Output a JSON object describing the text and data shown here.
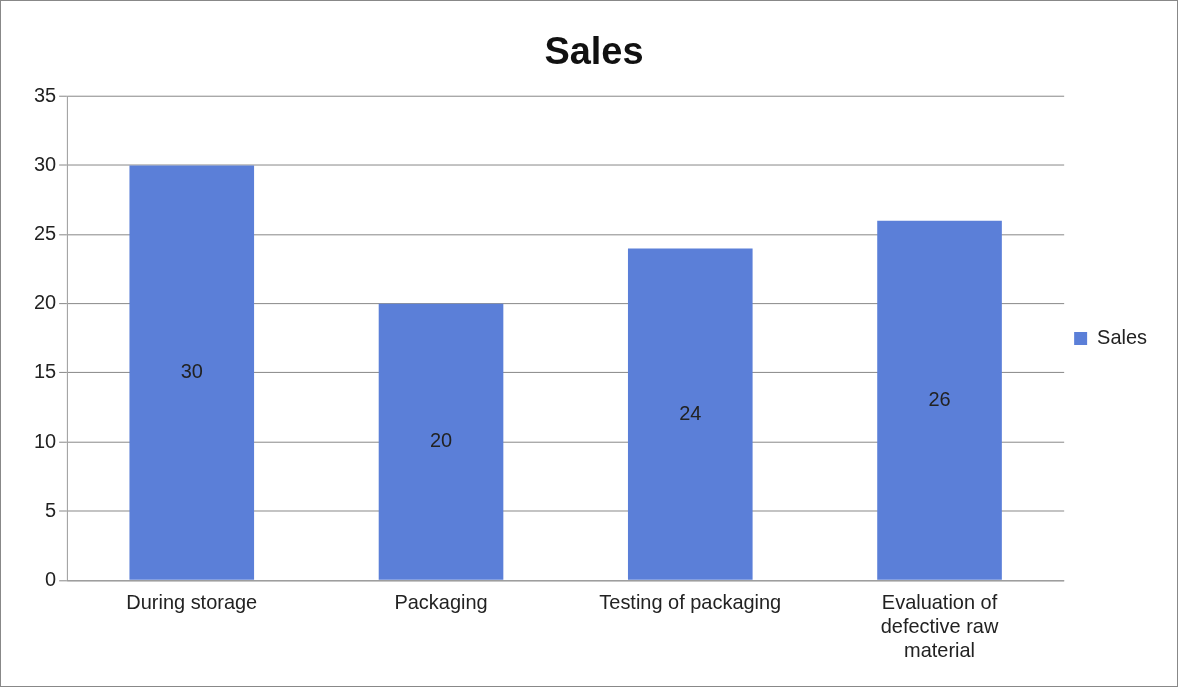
{
  "chart_data": {
    "type": "bar",
    "title": "Sales",
    "categories": [
      "During storage",
      "Packaging",
      "Testing of packaging",
      "Evaluation of defective raw material"
    ],
    "series": [
      {
        "name": "Sales",
        "color": "#5b7fd8",
        "values": [
          30,
          20,
          24,
          26
        ]
      }
    ],
    "ylim": [
      0,
      35
    ],
    "yticks": [
      0,
      5,
      10,
      15,
      20,
      25,
      30,
      35
    ],
    "grid": "y",
    "legend": "right",
    "data_labels": true
  }
}
